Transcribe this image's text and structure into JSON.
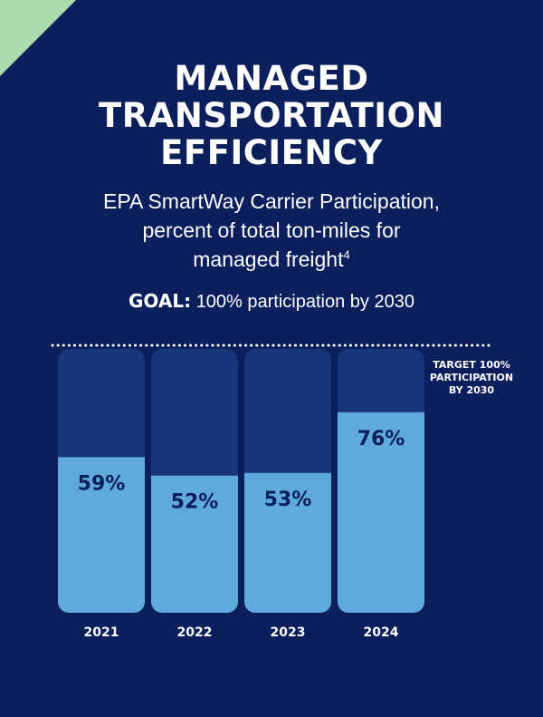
{
  "title_lines": [
    "MANAGED",
    "TRANSPORTATION",
    "EFFICIENCY"
  ],
  "subtitle": {
    "line1": "EPA SmartWay Carrier Participation,",
    "line2": "percent of total ton-miles for",
    "line3": "managed freight",
    "footnote": "4"
  },
  "goal": {
    "label": "GOAL:",
    "text": "100% participation by 2030"
  },
  "chart_data": {
    "type": "bar",
    "title": "EPA SmartWay Carrier Participation, percent of total ton-miles for managed freight",
    "categories": [
      "2021",
      "2022",
      "2023",
      "2024"
    ],
    "values": [
      59,
      52,
      53,
      76
    ],
    "value_labels": [
      "59%",
      "52%",
      "53%",
      "76%"
    ],
    "ylim": [
      0,
      100
    ],
    "target": {
      "value": 100,
      "label_lines": [
        "TARGET 100%",
        "PARTICIPATION",
        "BY 2030"
      ]
    },
    "grid": false,
    "xlabel": "",
    "ylabel": ""
  },
  "colors": {
    "background": "#0b1f5c",
    "bar_track": "#16357a",
    "bar_fill": "#5eaadd",
    "accent_corner": "#a8dcae"
  }
}
